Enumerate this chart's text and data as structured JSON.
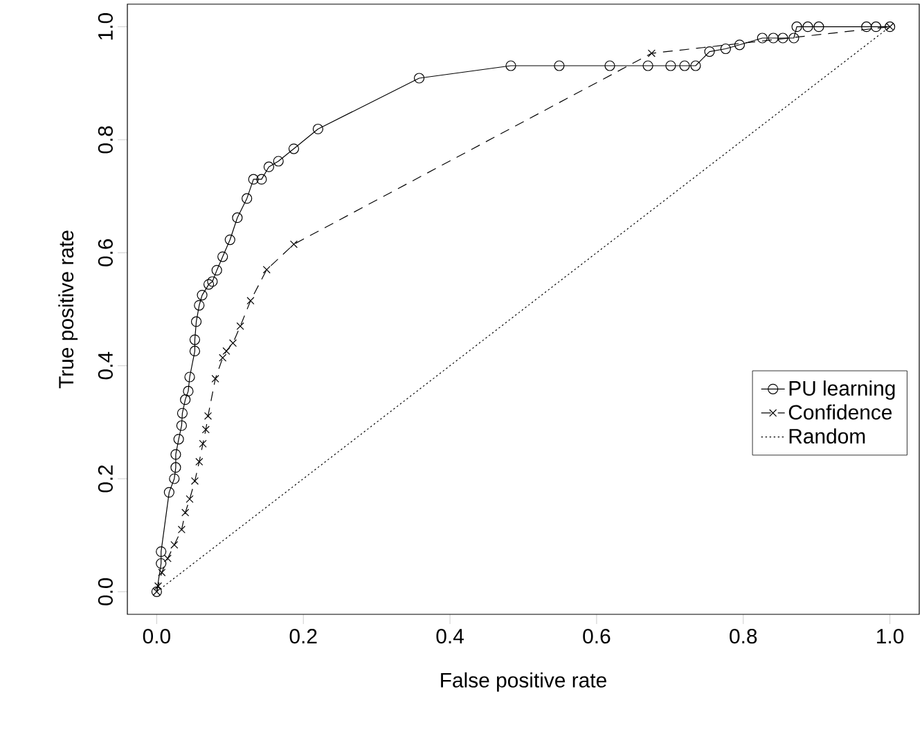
{
  "chart_data": {
    "type": "line",
    "xlabel": "False positive rate",
    "ylabel": "True positive rate",
    "xlim": [
      -0.04,
      1.04
    ],
    "ylim": [
      -0.04,
      1.04
    ],
    "xticks": [
      {
        "value": 0,
        "label": "0.0"
      },
      {
        "value": 0.2,
        "label": "0.2"
      },
      {
        "value": 0.4,
        "label": "0.4"
      },
      {
        "value": 0.6,
        "label": "0.6"
      },
      {
        "value": 0.8,
        "label": "0.8"
      },
      {
        "value": 1,
        "label": "1.0"
      }
    ],
    "yticks": [
      {
        "value": 0,
        "label": "0.0"
      },
      {
        "value": 0.2,
        "label": "0.2"
      },
      {
        "value": 0.4,
        "label": "0.4"
      },
      {
        "value": 0.6,
        "label": "0.6"
      },
      {
        "value": 0.8,
        "label": "0.8"
      },
      {
        "value": 1,
        "label": "1.0"
      }
    ],
    "grid": false,
    "legend": "right",
    "series": [
      {
        "name": "PU learning",
        "color": "#000000",
        "marker": "circle",
        "line_style": "solid",
        "x": [
          0,
          0.006,
          0.006,
          0.017,
          0.024,
          0.026,
          0.026,
          0.03,
          0.034,
          0.035,
          0.039,
          0.043,
          0.045,
          0.052,
          0.052,
          0.054,
          0.058,
          0.062,
          0.071,
          0.076,
          0.082,
          0.09,
          0.1,
          0.11,
          0.123,
          0.132,
          0.143,
          0.153,
          0.166,
          0.187,
          0.22,
          0.358,
          0.483,
          0.549,
          0.618,
          0.67,
          0.701,
          0.72,
          0.735,
          0.754,
          0.776,
          0.795,
          0.826,
          0.841,
          0.854,
          0.869,
          0.873,
          0.888,
          0.903,
          0.968,
          0.981,
          1.0
        ],
        "values": [
          0,
          0.05,
          0.071,
          0.176,
          0.2,
          0.22,
          0.243,
          0.27,
          0.294,
          0.316,
          0.34,
          0.355,
          0.38,
          0.426,
          0.446,
          0.478,
          0.507,
          0.525,
          0.544,
          0.549,
          0.569,
          0.593,
          0.623,
          0.662,
          0.696,
          0.73,
          0.73,
          0.752,
          0.762,
          0.784,
          0.819,
          0.909,
          0.931,
          0.931,
          0.931,
          0.931,
          0.931,
          0.931,
          0.931,
          0.956,
          0.961,
          0.968,
          0.98,
          0.98,
          0.98,
          0.98,
          1.0,
          1.0,
          1.0,
          1.0,
          1.0,
          1.0
        ]
      },
      {
        "name": "Confidence",
        "color": "#000000",
        "marker": "cross",
        "line_style": "dashed",
        "x": [
          0,
          0.002,
          0.007,
          0.015,
          0.024,
          0.034,
          0.039,
          0.045,
          0.052,
          0.058,
          0.063,
          0.067,
          0.07,
          0.08,
          0.09,
          0.095,
          0.104,
          0.114,
          0.128,
          0.15,
          0.187,
          0.675,
          1.0
        ],
        "values": [
          0,
          0.01,
          0.034,
          0.059,
          0.083,
          0.11,
          0.14,
          0.164,
          0.196,
          0.23,
          0.262,
          0.287,
          0.311,
          0.377,
          0.414,
          0.426,
          0.44,
          0.47,
          0.515,
          0.57,
          0.615,
          0.953,
          1.0
        ]
      },
      {
        "name": "Random",
        "color": "#000000",
        "marker": "none",
        "line_style": "dotted",
        "x": [
          0,
          0.25,
          0.5,
          0.75,
          1
        ],
        "values": [
          0,
          0.25,
          0.5,
          0.75,
          1
        ]
      }
    ]
  }
}
